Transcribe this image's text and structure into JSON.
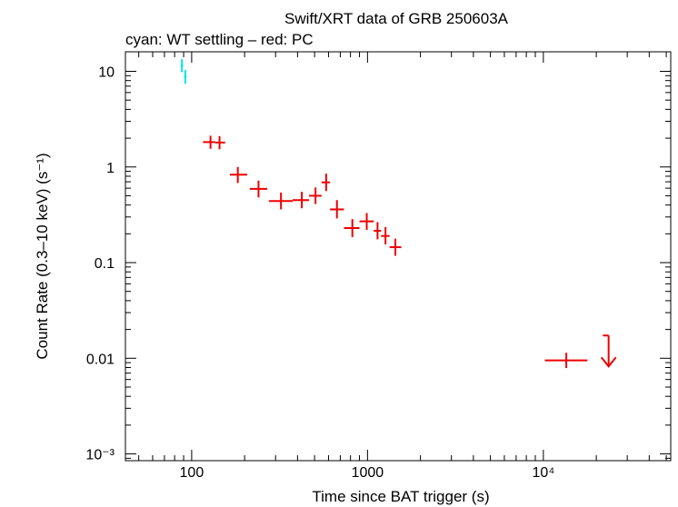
{
  "chart_data": {
    "type": "scatter",
    "title": "Swift/XRT data of GRB 250603A",
    "subtitle": "cyan: WT settling – red: PC",
    "xlabel": "Time since BAT trigger (s)",
    "ylabel": "Count Rate (0.3–10 keV) (s⁻¹)",
    "x_scale": "log",
    "y_scale": "log",
    "xlim": [
      42,
      53000
    ],
    "ylim": [
      0.00085,
      16
    ],
    "grid": false,
    "x_ticks": [
      {
        "value": 100,
        "label": "100"
      },
      {
        "value": 1000,
        "label": "1000"
      },
      {
        "value": 10000,
        "label": "10⁴"
      }
    ],
    "y_ticks": [
      {
        "value": 10,
        "label": "10"
      },
      {
        "value": 1,
        "label": "1"
      },
      {
        "value": 0.1,
        "label": "0.1"
      },
      {
        "value": 0.01,
        "label": "0.01"
      },
      {
        "value": 0.001,
        "label": "10⁻³"
      }
    ],
    "series": [
      {
        "color": "#00e5ee",
        "points": [
          {
            "x": 88,
            "y": 11.5,
            "xlo": 86.5,
            "xhi": 89.5,
            "ylo": 9.8,
            "yhi": 13.4
          },
          {
            "x": 92,
            "y": 8.8,
            "xlo": 90.5,
            "xhi": 93.5,
            "ylo": 7.4,
            "yhi": 10.3
          }
        ]
      },
      {
        "color": "#ee0000",
        "points": [
          {
            "x": 128,
            "y": 1.82,
            "xlo": 116,
            "xhi": 136,
            "ylo": 1.55,
            "yhi": 2.12
          },
          {
            "x": 144,
            "y": 1.8,
            "xlo": 136,
            "xhi": 155,
            "ylo": 1.53,
            "yhi": 2.1
          },
          {
            "x": 183,
            "y": 0.83,
            "xlo": 165,
            "xhi": 207,
            "ylo": 0.68,
            "yhi": 1.0
          },
          {
            "x": 240,
            "y": 0.59,
            "xlo": 214,
            "xhi": 269,
            "ylo": 0.48,
            "yhi": 0.72
          },
          {
            "x": 322,
            "y": 0.44,
            "xlo": 275,
            "xhi": 375,
            "ylo": 0.36,
            "yhi": 0.54
          },
          {
            "x": 423,
            "y": 0.45,
            "xlo": 375,
            "xhi": 465,
            "ylo": 0.37,
            "yhi": 0.55
          },
          {
            "x": 506,
            "y": 0.5,
            "xlo": 465,
            "xhi": 548,
            "ylo": 0.41,
            "yhi": 0.61
          },
          {
            "x": 582,
            "y": 0.69,
            "xlo": 548,
            "xhi": 612,
            "ylo": 0.56,
            "yhi": 0.85
          },
          {
            "x": 670,
            "y": 0.36,
            "xlo": 612,
            "xhi": 735,
            "ylo": 0.29,
            "yhi": 0.45
          },
          {
            "x": 820,
            "y": 0.23,
            "xlo": 735,
            "xhi": 900,
            "ylo": 0.185,
            "yhi": 0.285
          },
          {
            "x": 990,
            "y": 0.27,
            "xlo": 900,
            "xhi": 1085,
            "ylo": 0.22,
            "yhi": 0.33
          },
          {
            "x": 1140,
            "y": 0.215,
            "xlo": 1085,
            "xhi": 1195,
            "ylo": 0.175,
            "yhi": 0.265
          },
          {
            "x": 1265,
            "y": 0.19,
            "xlo": 1195,
            "xhi": 1335,
            "ylo": 0.155,
            "yhi": 0.235
          },
          {
            "x": 1440,
            "y": 0.145,
            "xlo": 1335,
            "xhi": 1555,
            "ylo": 0.118,
            "yhi": 0.178
          },
          {
            "x": 13500,
            "y": 0.0095,
            "xlo": 10200,
            "xhi": 17800,
            "ylo": 0.0079,
            "yhi": 0.0114
          }
        ],
        "upper_limits": [
          {
            "x": 23500,
            "y": 0.0173,
            "xlo": 21800,
            "xhi": 23500
          }
        ]
      }
    ]
  }
}
